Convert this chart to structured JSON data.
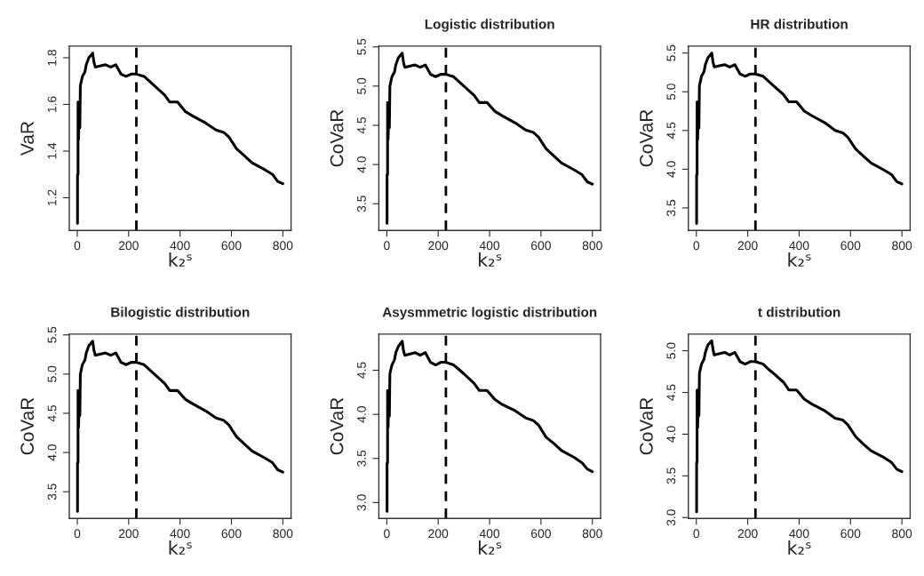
{
  "chart_data": [
    {
      "type": "line",
      "ylabel": "VaR",
      "xlabel": "k₂ˢ",
      "xlim": [
        -31,
        832
      ],
      "xticks": [
        0,
        200,
        400,
        600,
        800
      ],
      "ylim": [
        1.06,
        1.85
      ],
      "yticks": [
        1.2,
        1.4,
        1.6,
        1.8
      ],
      "grid": false,
      "legend": false,
      "ref_lines": [
        {
          "axis": "x",
          "value": 230,
          "line_style": "dashed",
          "color": "#000000"
        }
      ],
      "series": [
        {
          "color": "#000000",
          "x": [
            1,
            1,
            3,
            3,
            5,
            8,
            10,
            12,
            20,
            30,
            35,
            45,
            60,
            65,
            70,
            110,
            130,
            150,
            170,
            190,
            210,
            230,
            260,
            280,
            300,
            340,
            360,
            390,
            420,
            450,
            500,
            540,
            570,
            590,
            620,
            650,
            680,
            730,
            760,
            780,
            800
          ],
          "values": [
            1.09,
            1.3,
            1.3,
            1.61,
            1.45,
            1.58,
            1.5,
            1.68,
            1.72,
            1.74,
            1.77,
            1.8,
            1.82,
            1.78,
            1.76,
            1.77,
            1.76,
            1.77,
            1.73,
            1.72,
            1.73,
            1.73,
            1.72,
            1.7,
            1.68,
            1.64,
            1.61,
            1.61,
            1.57,
            1.55,
            1.52,
            1.49,
            1.48,
            1.46,
            1.41,
            1.38,
            1.35,
            1.32,
            1.3,
            1.27,
            1.26
          ]
        }
      ]
    },
    {
      "type": "line",
      "title": "Logistic distribution",
      "ylabel": "CoVaR",
      "xlabel": "k₂ˢ",
      "xlim": [
        -31,
        832
      ],
      "xticks": [
        0,
        200,
        400,
        600,
        800
      ],
      "ylim": [
        3.16,
        5.51
      ],
      "yticks": [
        3.5,
        {
          "value": 4,
          "label": "4.0"
        },
        4.5,
        {
          "value": 5,
          "label": "5.0"
        },
        5.5
      ],
      "grid": false,
      "legend": false,
      "ref_lines": [
        {
          "axis": "x",
          "value": 230,
          "line_style": "dashed",
          "color": "#000000"
        }
      ],
      "series": [
        {
          "color": "#000000",
          "x": [
            1,
            1,
            3,
            3,
            5,
            8,
            10,
            12,
            20,
            30,
            35,
            45,
            60,
            65,
            70,
            110,
            130,
            150,
            170,
            190,
            210,
            230,
            260,
            280,
            300,
            340,
            360,
            390,
            420,
            450,
            500,
            540,
            570,
            590,
            620,
            650,
            680,
            730,
            760,
            780,
            800
          ],
          "values": [
            3.25,
            3.87,
            3.87,
            4.79,
            4.32,
            4.71,
            4.47,
            5.0,
            5.12,
            5.18,
            5.27,
            5.36,
            5.42,
            5.3,
            5.24,
            5.27,
            5.24,
            5.27,
            5.15,
            5.12,
            5.15,
            5.15,
            5.12,
            5.06,
            5.0,
            4.88,
            4.79,
            4.79,
            4.68,
            4.62,
            4.53,
            4.44,
            4.41,
            4.35,
            4.2,
            4.11,
            4.02,
            3.93,
            3.87,
            3.78,
            3.75
          ]
        }
      ]
    },
    {
      "type": "line",
      "title": "HR distribution",
      "ylabel": "CoVaR",
      "xlabel": "k₂ˢ",
      "xlim": [
        -31,
        832
      ],
      "xticks": [
        0,
        200,
        400,
        600,
        800
      ],
      "ylim": [
        3.21,
        5.59
      ],
      "yticks": [
        3.5,
        {
          "value": 4,
          "label": "4.0"
        },
        4.5,
        {
          "value": 5,
          "label": "5.0"
        },
        5.5
      ],
      "grid": false,
      "legend": false,
      "ref_lines": [
        {
          "axis": "x",
          "value": 230,
          "line_style": "dashed",
          "color": "#000000"
        }
      ],
      "series": [
        {
          "color": "#000000",
          "x": [
            1,
            1,
            3,
            3,
            5,
            8,
            10,
            12,
            20,
            30,
            35,
            45,
            60,
            65,
            70,
            110,
            130,
            150,
            170,
            190,
            210,
            230,
            260,
            280,
            300,
            340,
            360,
            390,
            420,
            450,
            500,
            540,
            570,
            590,
            620,
            650,
            680,
            730,
            760,
            780,
            800
          ],
          "values": [
            3.3,
            3.93,
            3.93,
            4.87,
            4.38,
            4.78,
            4.53,
            5.08,
            5.2,
            5.26,
            5.35,
            5.44,
            5.5,
            5.38,
            5.32,
            5.35,
            5.32,
            5.35,
            5.23,
            5.2,
            5.23,
            5.23,
            5.2,
            5.14,
            5.08,
            4.96,
            4.87,
            4.87,
            4.75,
            4.69,
            4.6,
            4.5,
            4.47,
            4.41,
            4.26,
            4.17,
            4.08,
            3.99,
            3.93,
            3.84,
            3.81
          ]
        }
      ]
    },
    {
      "type": "line",
      "title": "Bilogistic distribution",
      "ylabel": "CoVaR",
      "xlabel": "k₂ˢ",
      "xlim": [
        -31,
        832
      ],
      "xticks": [
        0,
        200,
        400,
        600,
        800
      ],
      "ylim": [
        3.16,
        5.51
      ],
      "yticks": [
        3.5,
        {
          "value": 4,
          "label": "4.0"
        },
        4.5,
        {
          "value": 5,
          "label": "5.0"
        },
        5.5
      ],
      "grid": false,
      "legend": false,
      "ref_lines": [
        {
          "axis": "x",
          "value": 230,
          "line_style": "dashed",
          "color": "#000000"
        }
      ],
      "series": [
        {
          "color": "#000000",
          "x": [
            1,
            1,
            3,
            3,
            5,
            8,
            10,
            12,
            20,
            30,
            35,
            45,
            60,
            65,
            70,
            110,
            130,
            150,
            170,
            190,
            210,
            230,
            260,
            280,
            300,
            340,
            360,
            390,
            420,
            450,
            500,
            540,
            570,
            590,
            620,
            650,
            680,
            730,
            760,
            780,
            800
          ],
          "values": [
            3.25,
            3.87,
            3.87,
            4.79,
            4.32,
            4.71,
            4.47,
            5.0,
            5.12,
            5.18,
            5.27,
            5.36,
            5.42,
            5.3,
            5.24,
            5.27,
            5.24,
            5.27,
            5.15,
            5.12,
            5.15,
            5.15,
            5.12,
            5.06,
            5.0,
            4.88,
            4.79,
            4.79,
            4.68,
            4.62,
            4.53,
            4.44,
            4.41,
            4.35,
            4.2,
            4.11,
            4.02,
            3.93,
            3.87,
            3.78,
            3.75
          ]
        }
      ]
    },
    {
      "type": "line",
      "title": "Asysmmetric logistic distribution",
      "ylabel": "CoVaR",
      "xlabel": "k₂ˢ",
      "xlim": [
        -31,
        832
      ],
      "xticks": [
        0,
        200,
        400,
        600,
        800
      ],
      "ylim": [
        2.82,
        4.91
      ],
      "yticks": [
        {
          "value": 3,
          "label": "3.0"
        },
        3.5,
        {
          "value": 4,
          "label": "4.0"
        },
        4.5
      ],
      "grid": false,
      "legend": false,
      "ref_lines": [
        {
          "axis": "x",
          "value": 230,
          "line_style": "dashed",
          "color": "#000000"
        }
      ],
      "series": [
        {
          "color": "#000000",
          "x": [
            1,
            1,
            3,
            3,
            5,
            8,
            10,
            12,
            20,
            30,
            35,
            45,
            60,
            65,
            70,
            110,
            130,
            150,
            170,
            190,
            210,
            230,
            260,
            280,
            300,
            340,
            360,
            390,
            420,
            450,
            500,
            540,
            570,
            590,
            620,
            650,
            680,
            730,
            760,
            780,
            800
          ],
          "values": [
            2.9,
            3.45,
            3.45,
            4.27,
            3.85,
            4.19,
            3.98,
            4.46,
            4.56,
            4.62,
            4.7,
            4.77,
            4.83,
            4.72,
            4.67,
            4.7,
            4.67,
            4.7,
            4.59,
            4.56,
            4.59,
            4.59,
            4.56,
            4.51,
            4.46,
            4.35,
            4.27,
            4.27,
            4.17,
            4.11,
            4.04,
            3.96,
            3.93,
            3.88,
            3.74,
            3.67,
            3.59,
            3.51,
            3.45,
            3.38,
            3.35
          ]
        }
      ]
    },
    {
      "type": "line",
      "title": "t distribution",
      "ylabel": "CoVaR",
      "xlabel": "k₂ˢ",
      "xlim": [
        -31,
        832
      ],
      "xticks": [
        0,
        200,
        400,
        600,
        800
      ],
      "ylim": [
        2.99,
        5.2
      ],
      "yticks": [
        {
          "value": 3,
          "label": "3.0"
        },
        3.5,
        {
          "value": 4,
          "label": "4.0"
        },
        4.5,
        {
          "value": 5,
          "label": "5.0"
        }
      ],
      "grid": false,
      "legend": false,
      "ref_lines": [
        {
          "axis": "x",
          "value": 230,
          "line_style": "dashed",
          "color": "#000000"
        }
      ],
      "series": [
        {
          "color": "#000000",
          "x": [
            1,
            1,
            3,
            3,
            5,
            8,
            10,
            12,
            20,
            30,
            35,
            45,
            60,
            65,
            70,
            110,
            130,
            150,
            170,
            190,
            210,
            230,
            260,
            280,
            300,
            340,
            360,
            390,
            420,
            450,
            500,
            540,
            570,
            590,
            620,
            650,
            680,
            730,
            760,
            780,
            800
          ],
          "values": [
            3.07,
            3.66,
            3.66,
            4.53,
            4.08,
            4.45,
            4.22,
            4.73,
            4.84,
            4.9,
            4.98,
            5.07,
            5.12,
            5.01,
            4.95,
            4.98,
            4.95,
            4.98,
            4.87,
            4.84,
            4.87,
            4.87,
            4.84,
            4.78,
            4.73,
            4.62,
            4.53,
            4.53,
            4.42,
            4.36,
            4.28,
            4.19,
            4.17,
            4.11,
            3.97,
            3.88,
            3.8,
            3.72,
            3.66,
            3.58,
            3.55
          ]
        }
      ]
    }
  ]
}
